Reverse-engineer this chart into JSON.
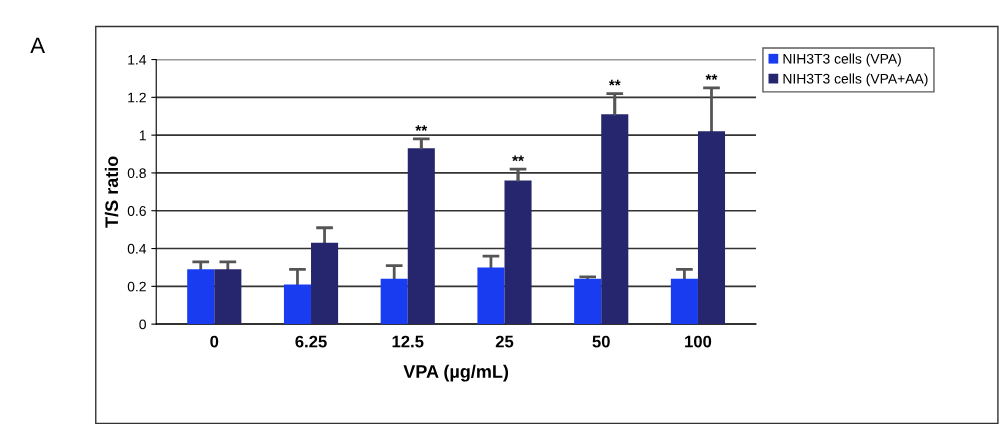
{
  "chart_data": {
    "type": "bar",
    "xlabel": "VPA (µg/mL)",
    "ylabel": "T/S ratio",
    "categories": [
      "0",
      "6.25",
      "12.5",
      "25",
      "50",
      "100"
    ],
    "series": [
      {
        "name": "NIH3T3 cells (VPA)",
        "color": "#1a3cf0",
        "values": [
          0.29,
          0.21,
          0.24,
          0.3,
          0.24,
          0.24
        ],
        "errors": [
          0.04,
          0.08,
          0.07,
          0.06,
          0.01,
          0.05
        ]
      },
      {
        "name": "NIH3T3 cells (VPA+AA)",
        "color": "#25266e",
        "values": [
          0.29,
          0.43,
          0.93,
          0.76,
          1.11,
          1.02
        ],
        "errors": [
          0.04,
          0.08,
          0.05,
          0.06,
          0.11,
          0.23
        ]
      }
    ],
    "ylim": [
      0,
      1.4
    ],
    "yticks": [
      {
        "value": 0,
        "label": "0"
      },
      {
        "value": 0.2,
        "label": "0.2"
      },
      {
        "value": 0.4,
        "label": "0.4"
      },
      {
        "value": 0.6,
        "label": "0.6"
      },
      {
        "value": 0.8,
        "label": "0.8"
      },
      {
        "value": 1,
        "label": "1"
      },
      {
        "value": 1.2,
        "label": "1.2"
      },
      {
        "value": 1.4,
        "label": "1.4"
      }
    ],
    "grid": "y",
    "legend": "top right",
    "annotations": [
      "A",
      {
        "text": "**",
        "x": "12.5",
        "y": 0.93
      },
      {
        "text": "**",
        "x": "25",
        "y": 0.76
      },
      {
        "text": "**",
        "x": "50",
        "y": 1.11
      },
      "**"
    ]
  }
}
